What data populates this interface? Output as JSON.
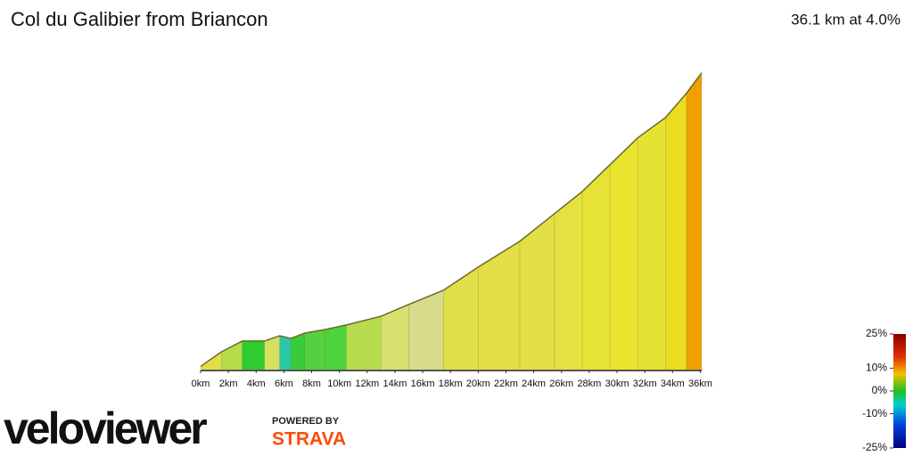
{
  "chart_data": {
    "type": "profile",
    "title": "Col du Galibier from Briancon",
    "subtitle": "36.1 km at 4.0%",
    "x": [
      0,
      1.5,
      3,
      4.6,
      5.7,
      6.5,
      7.5,
      9,
      10.5,
      13,
      15,
      17.5,
      20,
      23,
      25.5,
      27.5,
      29.5,
      31.5,
      33.5,
      35,
      36.1
    ],
    "values": [
      1200,
      1272,
      1325,
      1325,
      1351,
      1338,
      1364,
      1382,
      1404,
      1447,
      1505,
      1575,
      1689,
      1816,
      1952,
      2061,
      2193,
      2325,
      2425,
      2544,
      2645
    ],
    "segment_colors": [
      "#e2e04a",
      "#b6dc4a",
      "#2ecc2e",
      "#d4e060",
      "#2bc8a8",
      "#38cc38",
      "#55d040",
      "#4ed43c",
      "#b8dc50",
      "#d8e070",
      "#d6dc8c",
      "#e0e048",
      "#e2e046",
      "#e2e044",
      "#e4e240",
      "#e6e236",
      "#e8e430",
      "#e6e234",
      "#ecdc20",
      "#f0a000"
    ],
    "xlim": [
      0,
      36.1
    ],
    "ylim": [
      1180,
      2740
    ],
    "xticks": [
      {
        "value": 0,
        "label": "0km"
      },
      {
        "value": 2,
        "label": "2km"
      },
      {
        "value": 4,
        "label": "4km"
      },
      {
        "value": 6,
        "label": "6km"
      },
      {
        "value": 8,
        "label": "8km"
      },
      {
        "value": 10,
        "label": "10km"
      },
      {
        "value": 12,
        "label": "12km"
      },
      {
        "value": 14,
        "label": "14km"
      },
      {
        "value": 16,
        "label": "16km"
      },
      {
        "value": 18,
        "label": "18km"
      },
      {
        "value": 20,
        "label": "20km"
      },
      {
        "value": 22,
        "label": "22km"
      },
      {
        "value": 24,
        "label": "24km"
      },
      {
        "value": 26,
        "label": "26km"
      },
      {
        "value": 28,
        "label": "28km"
      },
      {
        "value": 30,
        "label": "30km"
      },
      {
        "value": 32,
        "label": "32km"
      },
      {
        "value": 34,
        "label": "34km"
      },
      {
        "value": 36,
        "label": "36km"
      }
    ],
    "colorbar": {
      "lim": [
        -25,
        25
      ],
      "ticks": [
        {
          "value": 25,
          "label": "25%"
        },
        {
          "value": 10,
          "label": "10%"
        },
        {
          "value": 0,
          "label": "0%"
        },
        {
          "value": -10,
          "label": "-10%"
        },
        {
          "value": -25,
          "label": "-25%"
        }
      ]
    },
    "brand": "veloviewer",
    "powered_by": "POWERED BY",
    "partner": "STRAVA"
  }
}
